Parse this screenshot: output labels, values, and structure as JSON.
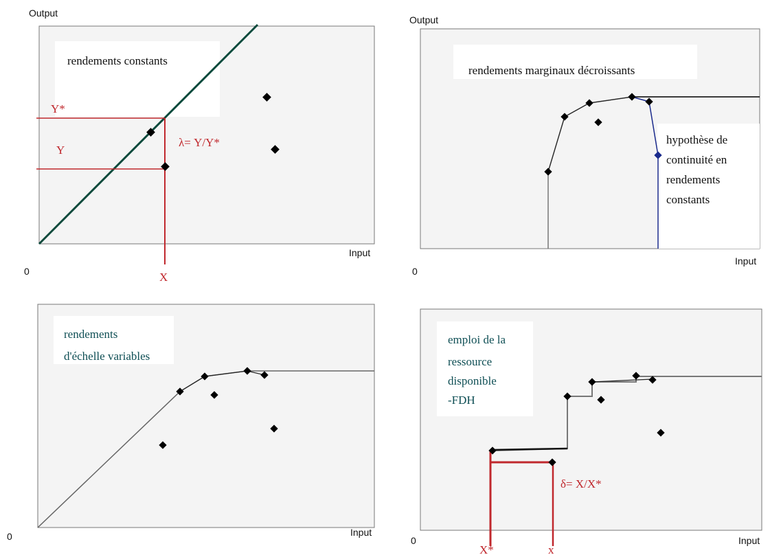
{
  "panels": {
    "crs": {
      "y_axis_label": "Output",
      "x_axis_label": "Input",
      "origin_label": "0",
      "title": "rendements constants",
      "y_star": "Y*",
      "y": "Y",
      "lambda": "λ=  Y/Y*",
      "x": "X"
    },
    "nirs": {
      "y_axis_label": "Output",
      "x_axis_label": "Input",
      "origin_label": "0",
      "title": "rendements marginaux décroissants",
      "note_lines": [
        "hypothèse de",
        "continuité en",
        "rendements",
        "constants"
      ]
    },
    "vrs": {
      "x_axis_label": "Input",
      "origin_label": "0",
      "title_lines": [
        "rendements",
        "d'échelle variables"
      ]
    },
    "fdh": {
      "x_axis_label": "Input",
      "origin_label": "0",
      "title_lines": [
        "emploi de la",
        "ressource",
        "disponible",
        "-FDH"
      ],
      "delta": "δ=  X/X*",
      "x_star": "X*",
      "x": "x"
    }
  },
  "colors": {
    "plot_background": "#f4f4f4",
    "frontier_green": "#0d4a3c",
    "efficiency_red": "#c0282d",
    "frontier_blue": "#1a2a8c",
    "frontier_gray": "#777777",
    "point": "#000000"
  }
}
